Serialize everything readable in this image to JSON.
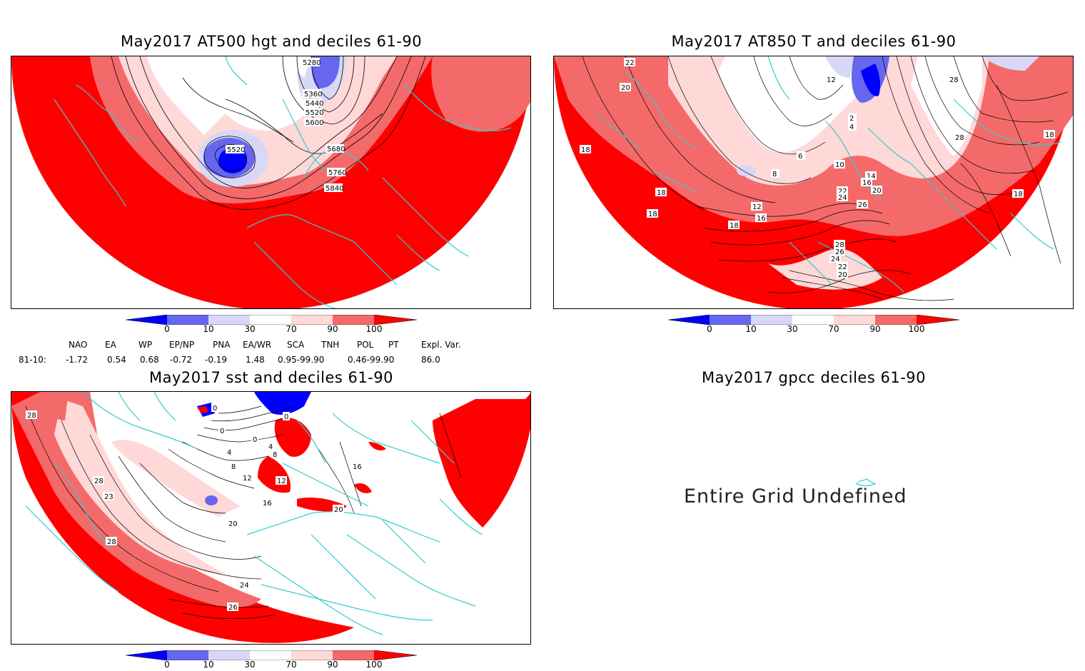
{
  "panels": [
    {
      "id": "p500",
      "title": "May2017 AT500 hgt and deciles 61-90",
      "contour_labels": [
        "5280",
        "5360",
        "5440",
        "5520",
        "5600",
        "5520",
        "5680",
        "5760",
        "5840"
      ]
    },
    {
      "id": "p850",
      "title": "May2017 AT850 T and deciles 61-90",
      "contour_labels": [
        "22",
        "20",
        "18",
        "18",
        "18",
        "16",
        "18",
        "12",
        "8",
        "6",
        "4",
        "2",
        "10",
        "12",
        "14",
        "16",
        "20",
        "22",
        "24",
        "26",
        "28",
        "26",
        "24",
        "22",
        "20",
        "28",
        "28",
        "18",
        "18"
      ]
    },
    {
      "id": "psst",
      "title": "May2017 sst and deciles 61-90",
      "contour_labels": [
        "28",
        "28",
        "23",
        "28",
        "0",
        "0",
        "0",
        "4",
        "0",
        "4",
        "8",
        "8",
        "12",
        "12",
        "16",
        "16",
        "20",
        "20",
        "24",
        "26"
      ]
    },
    {
      "id": "pgpcc",
      "title": "May2017 gpcc deciles 61-90",
      "message": "Entire Grid Undefined"
    }
  ],
  "colorbar": {
    "labels": [
      "0",
      "10",
      "30",
      "70",
      "90",
      "100"
    ],
    "colors": [
      "#0000ff",
      "#6666ee",
      "#d8d8f6",
      "#ffffff",
      "#ffd8d8",
      "#f46a6a",
      "#ff0000"
    ]
  },
  "teleconnections": {
    "headers": [
      "NAO",
      "EA",
      "WP",
      "EP/NP",
      "PNA",
      "EA/WR",
      "SCA",
      "TNH",
      "POL",
      "PT",
      "Expl. Var."
    ],
    "row_label": "81-10:",
    "values": [
      "-1.72",
      "0.54",
      "0.68",
      "-0.72",
      "-0.19",
      "1.48",
      "0.95-99.90",
      "0.46-99.90",
      "86.0"
    ]
  },
  "map_colors": {
    "red": "#ff0000",
    "mid_red": "#f46a6a",
    "light_red": "#ffd8d8",
    "light_blue": "#d8d8f6",
    "mid_blue": "#6666ee",
    "blue": "#0000ff",
    "coast": "#33cccc"
  }
}
